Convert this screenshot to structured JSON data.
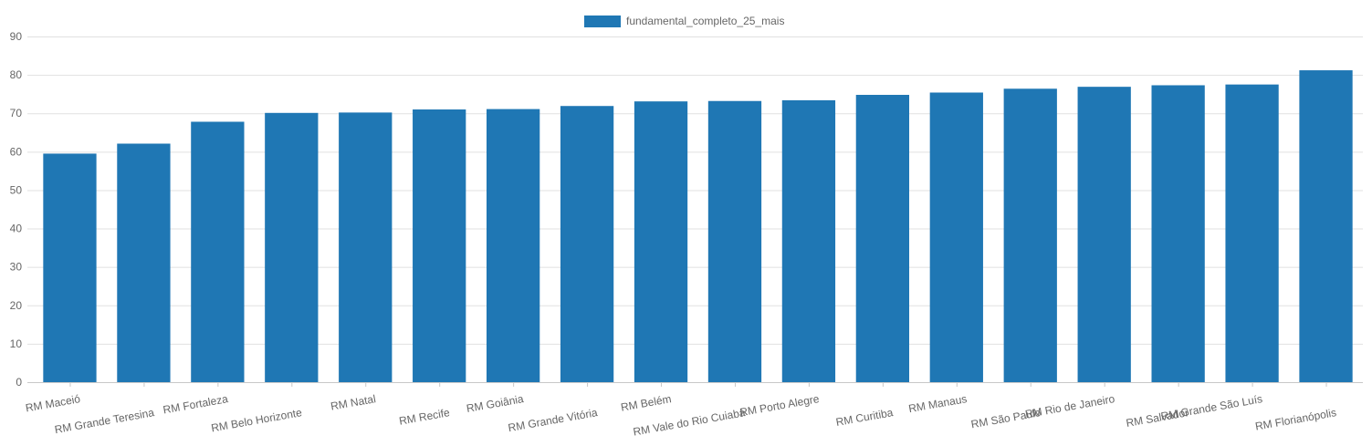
{
  "chart_data": {
    "type": "bar",
    "series": [
      {
        "name": "fundamental_completo_25_mais",
        "color": "#1f77b4",
        "values": [
          59.5,
          62.1,
          67.8,
          70.1,
          70.2,
          71.0,
          71.1,
          71.9,
          73.1,
          73.2,
          73.4,
          74.8,
          75.4,
          76.4,
          76.9,
          77.3,
          77.5,
          81.2
        ]
      }
    ],
    "categories": [
      "RM Maceió",
      "RM Grande Teresina",
      "RM Fortaleza",
      "RM Belo Horizonte",
      "RM Natal",
      "RM Recife",
      "RM Goiânia",
      "RM Grande Vitória",
      "RM Belém",
      "RM Vale do Rio Cuiabá",
      "RM Porto Alegre",
      "RM Curitiba",
      "RM Manaus",
      "RM São Paulo",
      "RM Rio de Janeiro",
      "RM Salvador",
      "RM Grande São Luís",
      "RM Florianópolis"
    ],
    "ylim": [
      0,
      90
    ],
    "yticks": [
      0,
      10,
      20,
      30,
      40,
      50,
      60,
      70,
      80,
      90
    ],
    "grid": true,
    "legend_position": "top-center",
    "title": "",
    "xlabel": "",
    "ylabel": ""
  }
}
